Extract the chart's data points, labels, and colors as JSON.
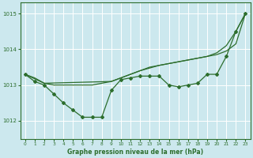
{
  "title": "Graphe pression niveau de la mer (hPa)",
  "background_color": "#cce8ee",
  "grid_color": "#ffffff",
  "line_color": "#2d6e2d",
  "xlim": [
    -0.5,
    23.5
  ],
  "ylim": [
    1011.5,
    1015.3
  ],
  "yticks": [
    1012,
    1013,
    1014,
    1015
  ],
  "xticks": [
    0,
    1,
    2,
    3,
    4,
    5,
    6,
    7,
    8,
    9,
    10,
    11,
    12,
    13,
    14,
    15,
    16,
    17,
    18,
    19,
    20,
    21,
    22,
    23
  ],
  "smooth_x": [
    0,
    1,
    2,
    3,
    4,
    5,
    6,
    7,
    8,
    9,
    10,
    11,
    12,
    13,
    14,
    15,
    16,
    17,
    18,
    19,
    20,
    21,
    22,
    23
  ],
  "smooth_y": [
    1013.3,
    1013.2,
    1013.05,
    1013.0,
    1013.0,
    1013.0,
    1013.0,
    1013.0,
    1013.05,
    1013.1,
    1013.2,
    1013.3,
    1013.4,
    1013.5,
    1013.55,
    1013.6,
    1013.65,
    1013.7,
    1013.75,
    1013.8,
    1013.85,
    1013.95,
    1014.15,
    1015.0
  ],
  "zigzag_x": [
    0,
    1,
    2,
    3,
    4,
    5,
    6,
    7,
    8,
    9,
    10,
    11,
    12,
    13,
    14,
    15,
    16,
    17,
    18,
    19,
    20,
    21,
    22,
    23
  ],
  "zigzag_y": [
    1013.3,
    1013.1,
    1013.0,
    1012.75,
    1012.5,
    1012.3,
    1012.1,
    1012.1,
    1012.1,
    1012.85,
    1013.15,
    1013.2,
    1013.25,
    1013.25,
    1013.25,
    1013.0,
    1012.95,
    1013.0,
    1013.05,
    1013.3,
    1013.3,
    1013.8,
    1014.5,
    1015.0
  ],
  "upper_x": [
    0,
    9,
    10,
    11,
    12,
    13,
    14,
    21,
    22,
    23
  ],
  "upper_y": [
    1013.3,
    1013.1,
    1013.3,
    1013.35,
    1013.4,
    1013.5,
    1013.55,
    1013.85,
    1014.5,
    1015.0
  ]
}
